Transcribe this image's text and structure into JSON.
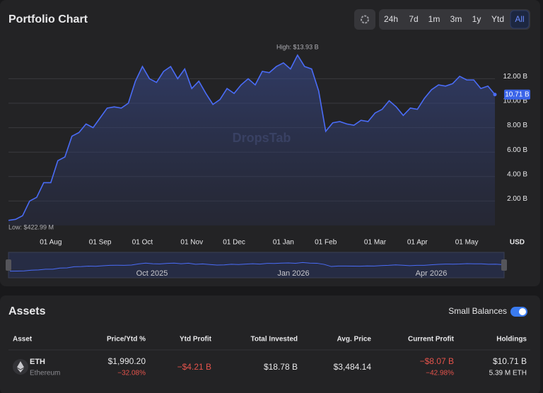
{
  "header": {
    "title": "Portfolio Chart",
    "timeframes": [
      "24h",
      "7d",
      "1m",
      "3m",
      "1y",
      "Ytd",
      "All"
    ],
    "active_timeframe": "All"
  },
  "chart_data": {
    "type": "line",
    "y_label": "USD",
    "watermark": "DropsTab",
    "annotations": {
      "high": "High: $13.93 B",
      "low": "Low: $422.99 M",
      "last": "10.71 B"
    },
    "categories": [
      null,
      null,
      null,
      null,
      null,
      null,
      "01 Aug",
      null,
      null,
      null,
      null,
      null,
      null,
      "01 Sep",
      null,
      null,
      null,
      null,
      null,
      "01 Oct",
      null,
      null,
      null,
      null,
      null,
      null,
      "01 Nov",
      null,
      null,
      null,
      null,
      null,
      "01 Dec",
      null,
      null,
      null,
      null,
      null,
      null,
      "01 Jan",
      null,
      null,
      null,
      null,
      null,
      "01 Feb",
      null,
      null,
      null,
      null,
      null,
      null,
      "01 Mar",
      null,
      null,
      null,
      null,
      null,
      "01 Apr",
      null,
      null,
      null,
      null,
      null,
      null,
      "01 May",
      null,
      null,
      null,
      null
    ],
    "values": [
      0.42,
      0.5,
      0.8,
      2.0,
      2.3,
      3.5,
      3.5,
      5.3,
      5.6,
      7.3,
      7.6,
      8.3,
      8.0,
      8.8,
      9.6,
      9.7,
      9.6,
      10.0,
      11.8,
      13.0,
      12.0,
      11.7,
      12.6,
      13.0,
      12.0,
      12.8,
      11.2,
      11.8,
      10.8,
      9.9,
      10.3,
      11.2,
      10.8,
      11.5,
      12.0,
      11.5,
      12.6,
      12.5,
      13.0,
      13.3,
      12.8,
      13.93,
      13.0,
      12.8,
      11.0,
      7.7,
      8.4,
      8.5,
      8.3,
      8.2,
      8.6,
      8.5,
      9.2,
      9.5,
      10.2,
      9.7,
      9.0,
      9.6,
      9.5,
      10.4,
      11.1,
      11.5,
      11.4,
      11.6,
      12.2,
      11.9,
      11.9,
      11.2,
      11.4,
      10.71
    ],
    "color": "#4a6cf7",
    "ylim": [
      0,
      15.5
    ],
    "yticks": [
      {
        "value": 2,
        "label": "2.00 B"
      },
      {
        "value": 4,
        "label": "4.00 B"
      },
      {
        "value": 6,
        "label": "6.00 B"
      },
      {
        "value": 8,
        "label": "8.00 B"
      },
      {
        "value": 10,
        "label": "10.00 B"
      },
      {
        "value": 12,
        "label": "12.00 B"
      }
    ],
    "grid": true,
    "navigator_labels": [
      "Oct 2025",
      "Jan 2026",
      "Apr 2026"
    ]
  },
  "assets": {
    "title": "Assets",
    "toggle_label": "Small Balances",
    "toggle_on": true,
    "columns": [
      "Asset",
      "Price/Ytd %",
      "Ytd Profit",
      "Total Invested",
      "Avg. Price",
      "Current Profit",
      "Holdings"
    ],
    "rows": [
      {
        "symbol": "ETH",
        "name": "Ethereum",
        "price": "$1,990.20",
        "ytd_pct": "−32.08%",
        "ytd_profit": "−$4.21 B",
        "total_invested": "$18.78 B",
        "avg_price": "$3,484.14",
        "current_profit": "−$8.07 B",
        "current_profit_pct": "−42.98%",
        "holdings": "$10.71 B",
        "holdings_amount": "5.39 M ETH"
      }
    ]
  }
}
